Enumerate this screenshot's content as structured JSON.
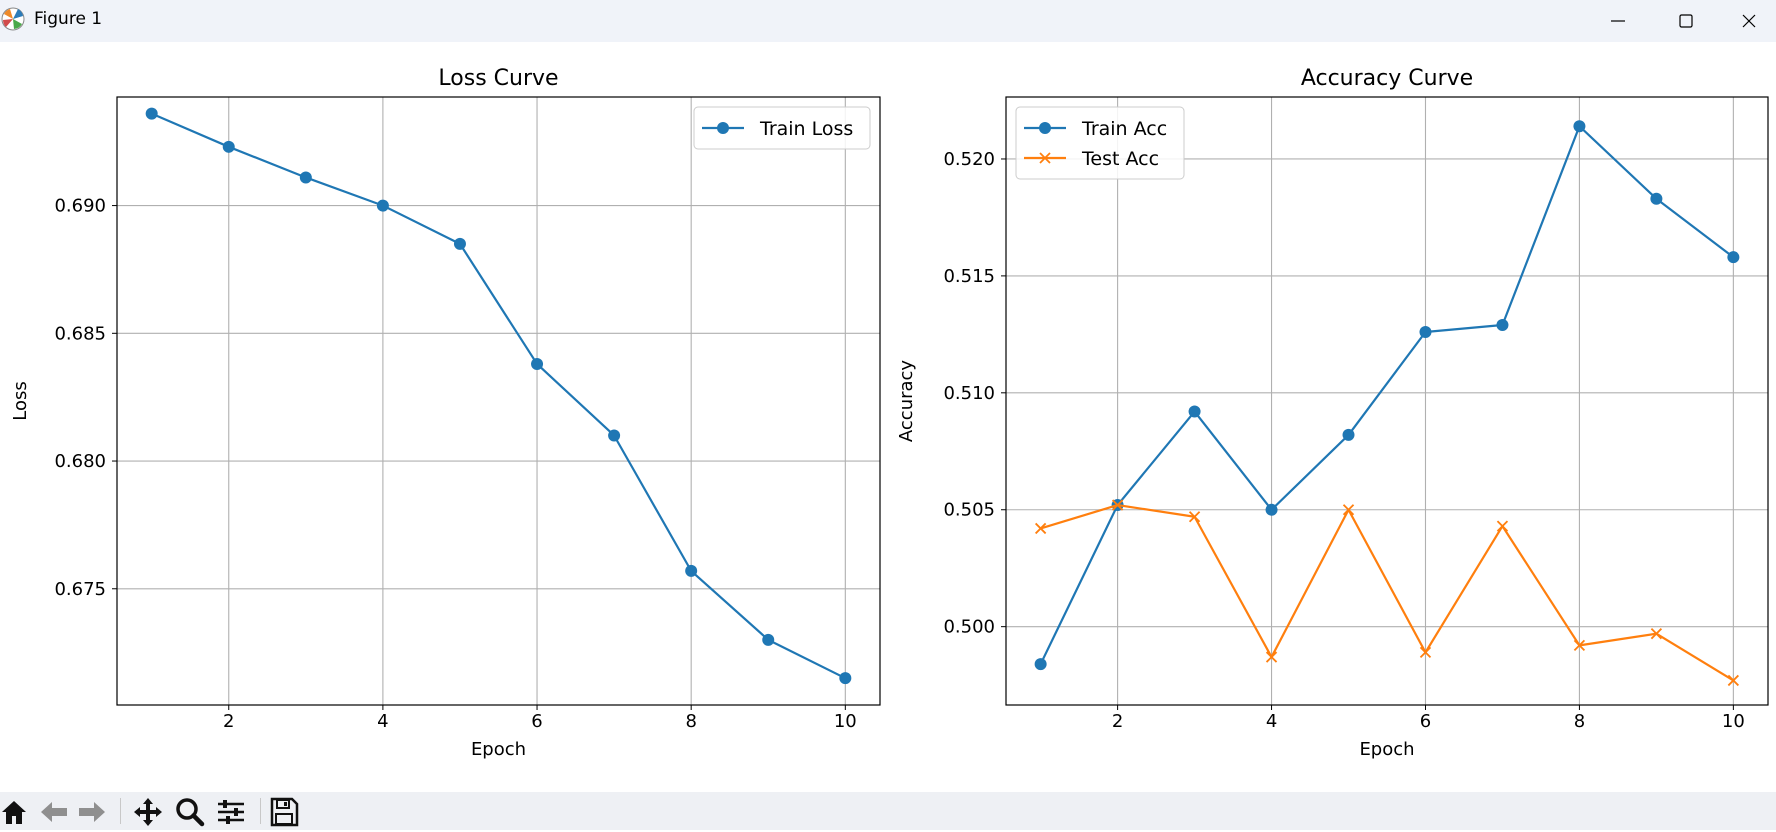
{
  "window": {
    "title": "Figure 1",
    "minimize_icon": "minimize-icon",
    "maximize_icon": "maximize-icon",
    "close_icon": "close-icon"
  },
  "toolbar": {
    "tools": [
      "home-icon",
      "back-arrow-icon",
      "forward-arrow-icon",
      "pan-move-icon",
      "zoom-magnifier-icon",
      "configure-subplots-icon",
      "save-disk-icon"
    ]
  },
  "colors": {
    "train": "#1f77b4",
    "test": "#ff7f0e",
    "grid": "#b0b0b0",
    "axes": "#000000"
  },
  "chart_data": [
    {
      "type": "line",
      "title": "Loss Curve",
      "xlabel": "Epoch",
      "ylabel": "Loss",
      "xlim": [
        0.55,
        10.45
      ],
      "ylim": [
        0.67045,
        0.69425
      ],
      "xticks": [
        2,
        4,
        6,
        8,
        10
      ],
      "xtick_labels": [
        "2",
        "4",
        "6",
        "8",
        "10"
      ],
      "yticks": [
        0.675,
        0.68,
        0.685,
        0.69
      ],
      "ytick_labels": [
        "0.675",
        "0.680",
        "0.685",
        "0.690"
      ],
      "grid": true,
      "legend_position": "upper right",
      "x": [
        1,
        2,
        3,
        4,
        5,
        6,
        7,
        8,
        9,
        10
      ],
      "series": [
        {
          "name": "Train Loss",
          "marker": "circle",
          "color": "#1f77b4",
          "values": [
            0.6936,
            0.6923,
            0.6911,
            0.69,
            0.6885,
            0.6838,
            0.681,
            0.6757,
            0.673,
            0.6715
          ]
        }
      ]
    },
    {
      "type": "line",
      "title": "Accuracy Curve",
      "xlabel": "Epoch",
      "ylabel": "Accuracy",
      "xlim": [
        0.55,
        10.45
      ],
      "ylim": [
        0.49665,
        0.52265
      ],
      "xticks": [
        2,
        4,
        6,
        8,
        10
      ],
      "xtick_labels": [
        "2",
        "4",
        "6",
        "8",
        "10"
      ],
      "yticks": [
        0.5,
        0.505,
        0.51,
        0.515,
        0.52
      ],
      "ytick_labels": [
        "0.500",
        "0.505",
        "0.510",
        "0.515",
        "0.520"
      ],
      "grid": true,
      "legend_position": "upper left",
      "x": [
        1,
        2,
        3,
        4,
        5,
        6,
        7,
        8,
        9,
        10
      ],
      "series": [
        {
          "name": "Train Acc",
          "marker": "circle",
          "color": "#1f77b4",
          "values": [
            0.4984,
            0.5052,
            0.5092,
            0.505,
            0.5082,
            0.5126,
            0.5129,
            0.5214,
            0.5183,
            0.5158
          ]
        },
        {
          "name": "Test Acc",
          "marker": "x",
          "color": "#ff7f0e",
          "values": [
            0.5042,
            0.5052,
            0.5047,
            0.4987,
            0.505,
            0.4989,
            0.5043,
            0.4992,
            0.4997,
            0.4977
          ]
        }
      ]
    }
  ]
}
